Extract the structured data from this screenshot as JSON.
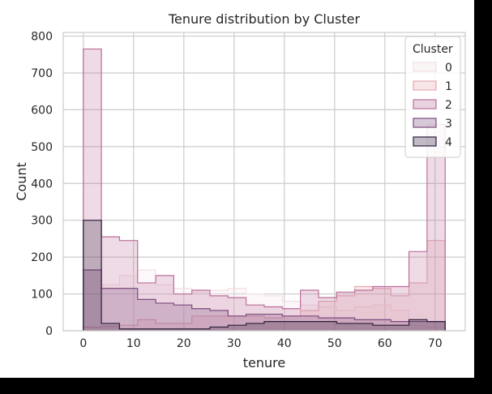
{
  "chart_data": {
    "type": "histogram",
    "title": "Tenure distribution by Cluster",
    "xlabel": "tenure",
    "ylabel": "Count",
    "xlim": [
      -4,
      76
    ],
    "ylim": [
      0,
      810
    ],
    "xticks": [
      0,
      10,
      20,
      30,
      40,
      50,
      60,
      70
    ],
    "yticks": [
      0,
      100,
      200,
      300,
      400,
      500,
      600,
      700,
      800
    ],
    "grid": true,
    "element": "step",
    "fill_alpha": 0.25,
    "bin_edges": [
      0,
      3.6,
      7.2,
      10.8,
      14.4,
      18,
      21.6,
      25.2,
      28.8,
      32.4,
      36,
      39.6,
      43.2,
      46.8,
      50.4,
      54,
      57.6,
      61.2,
      64.8,
      68.4,
      72
    ],
    "legend": {
      "title": "Cluster",
      "placement": "top-right"
    },
    "series": [
      {
        "name": "0",
        "color": "#f3e0e2",
        "values": [
          165,
          125,
          150,
          165,
          125,
          115,
          105,
          110,
          115,
          100,
          95,
          80,
          70,
          65,
          55,
          65,
          70,
          55,
          15,
          10
        ]
      },
      {
        "name": "1",
        "color": "#e6aab0",
        "values": [
          10,
          12,
          15,
          30,
          20,
          20,
          40,
          40,
          40,
          40,
          35,
          40,
          55,
          80,
          95,
          120,
          115,
          95,
          130,
          245
        ]
      },
      {
        "name": "2",
        "color": "#bb6e9a",
        "values": [
          765,
          255,
          245,
          130,
          150,
          100,
          110,
          95,
          90,
          70,
          65,
          60,
          110,
          90,
          105,
          110,
          120,
          120,
          215,
          560
        ]
      },
      {
        "name": "3",
        "color": "#7c4b7e",
        "values": [
          165,
          115,
          115,
          85,
          75,
          70,
          60,
          55,
          40,
          45,
          45,
          40,
          40,
          35,
          35,
          30,
          30,
          25,
          25,
          25
        ]
      },
      {
        "name": "4",
        "color": "#2e1e3b",
        "values": [
          300,
          20,
          5,
          5,
          5,
          5,
          5,
          10,
          15,
          20,
          25,
          25,
          25,
          25,
          20,
          20,
          15,
          15,
          30,
          25
        ]
      }
    ]
  }
}
